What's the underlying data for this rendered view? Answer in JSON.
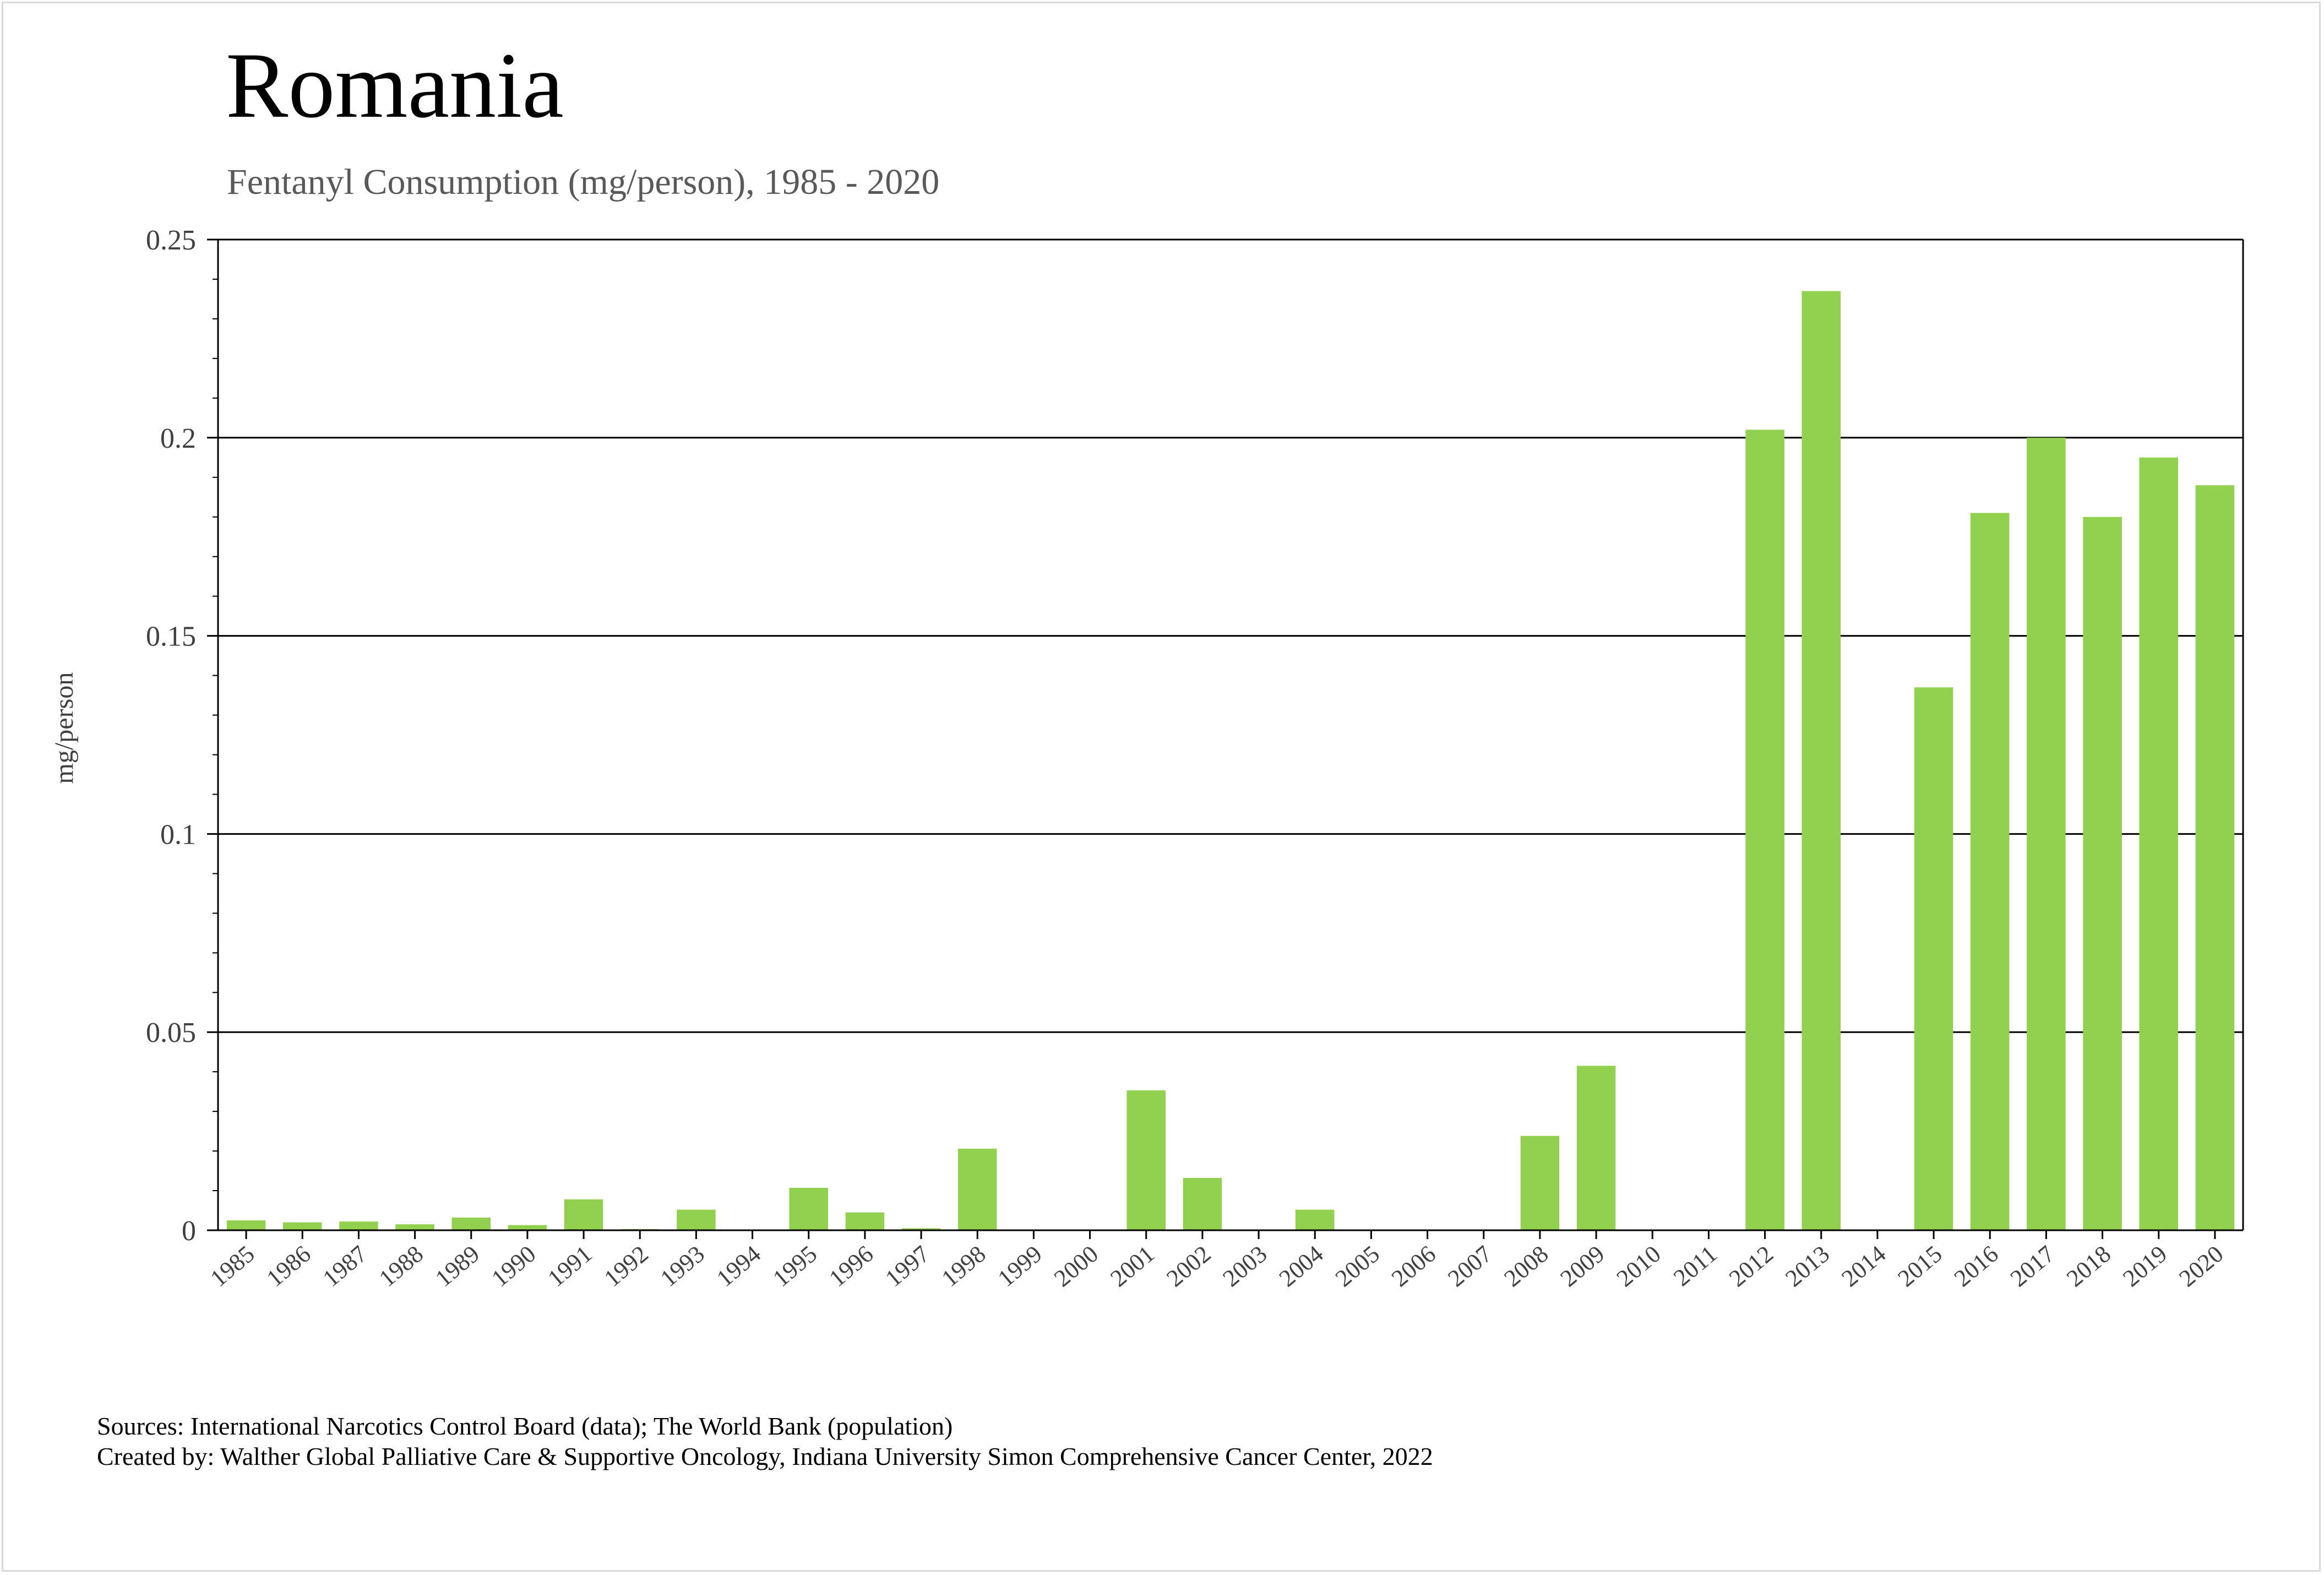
{
  "chart_data": {
    "type": "bar",
    "title": "Romania",
    "subtitle": "Fentanyl Consumption (mg/person), 1985 - 2020",
    "ylabel": "mg/person",
    "xlabel": "",
    "ylim": [
      0,
      0.25
    ],
    "yticks": [
      "0",
      "0.05",
      "0.1",
      "0.15",
      "0.2",
      "0.25"
    ],
    "grid": true,
    "bar_color": "#92d050",
    "categories": [
      "1985",
      "1986",
      "1987",
      "1988",
      "1989",
      "1990",
      "1991",
      "1992",
      "1993",
      "1994",
      "1995",
      "1996",
      "1997",
      "1998",
      "1999",
      "2000",
      "2001",
      "2002",
      "2003",
      "2004",
      "2005",
      "2006",
      "2007",
      "2008",
      "2009",
      "2010",
      "2011",
      "2012",
      "2013",
      "2014",
      "2015",
      "2016",
      "2017",
      "2018",
      "2019",
      "2020"
    ],
    "values": [
      0.0025,
      0.002,
      0.0022,
      0.0015,
      0.0032,
      0.0013,
      0.0078,
      0.0003,
      0.0052,
      0,
      0.0107,
      0.0045,
      0.0005,
      0.0206,
      0,
      0,
      0.0353,
      0.0132,
      0,
      0.0052,
      0,
      0,
      0,
      0.0238,
      0.0415,
      0,
      0,
      0.202,
      0.237,
      0,
      0.137,
      0.181,
      0.2,
      0.18,
      0.195,
      0.188
    ]
  },
  "footer": {
    "sources": "Sources: International Narcotics Control Board (data); The World Bank (population)",
    "created_by": "Created by: Walther Global Palliative Care & Supportive Oncology, Indiana University Simon Comprehensive Cancer Center, 2022"
  }
}
